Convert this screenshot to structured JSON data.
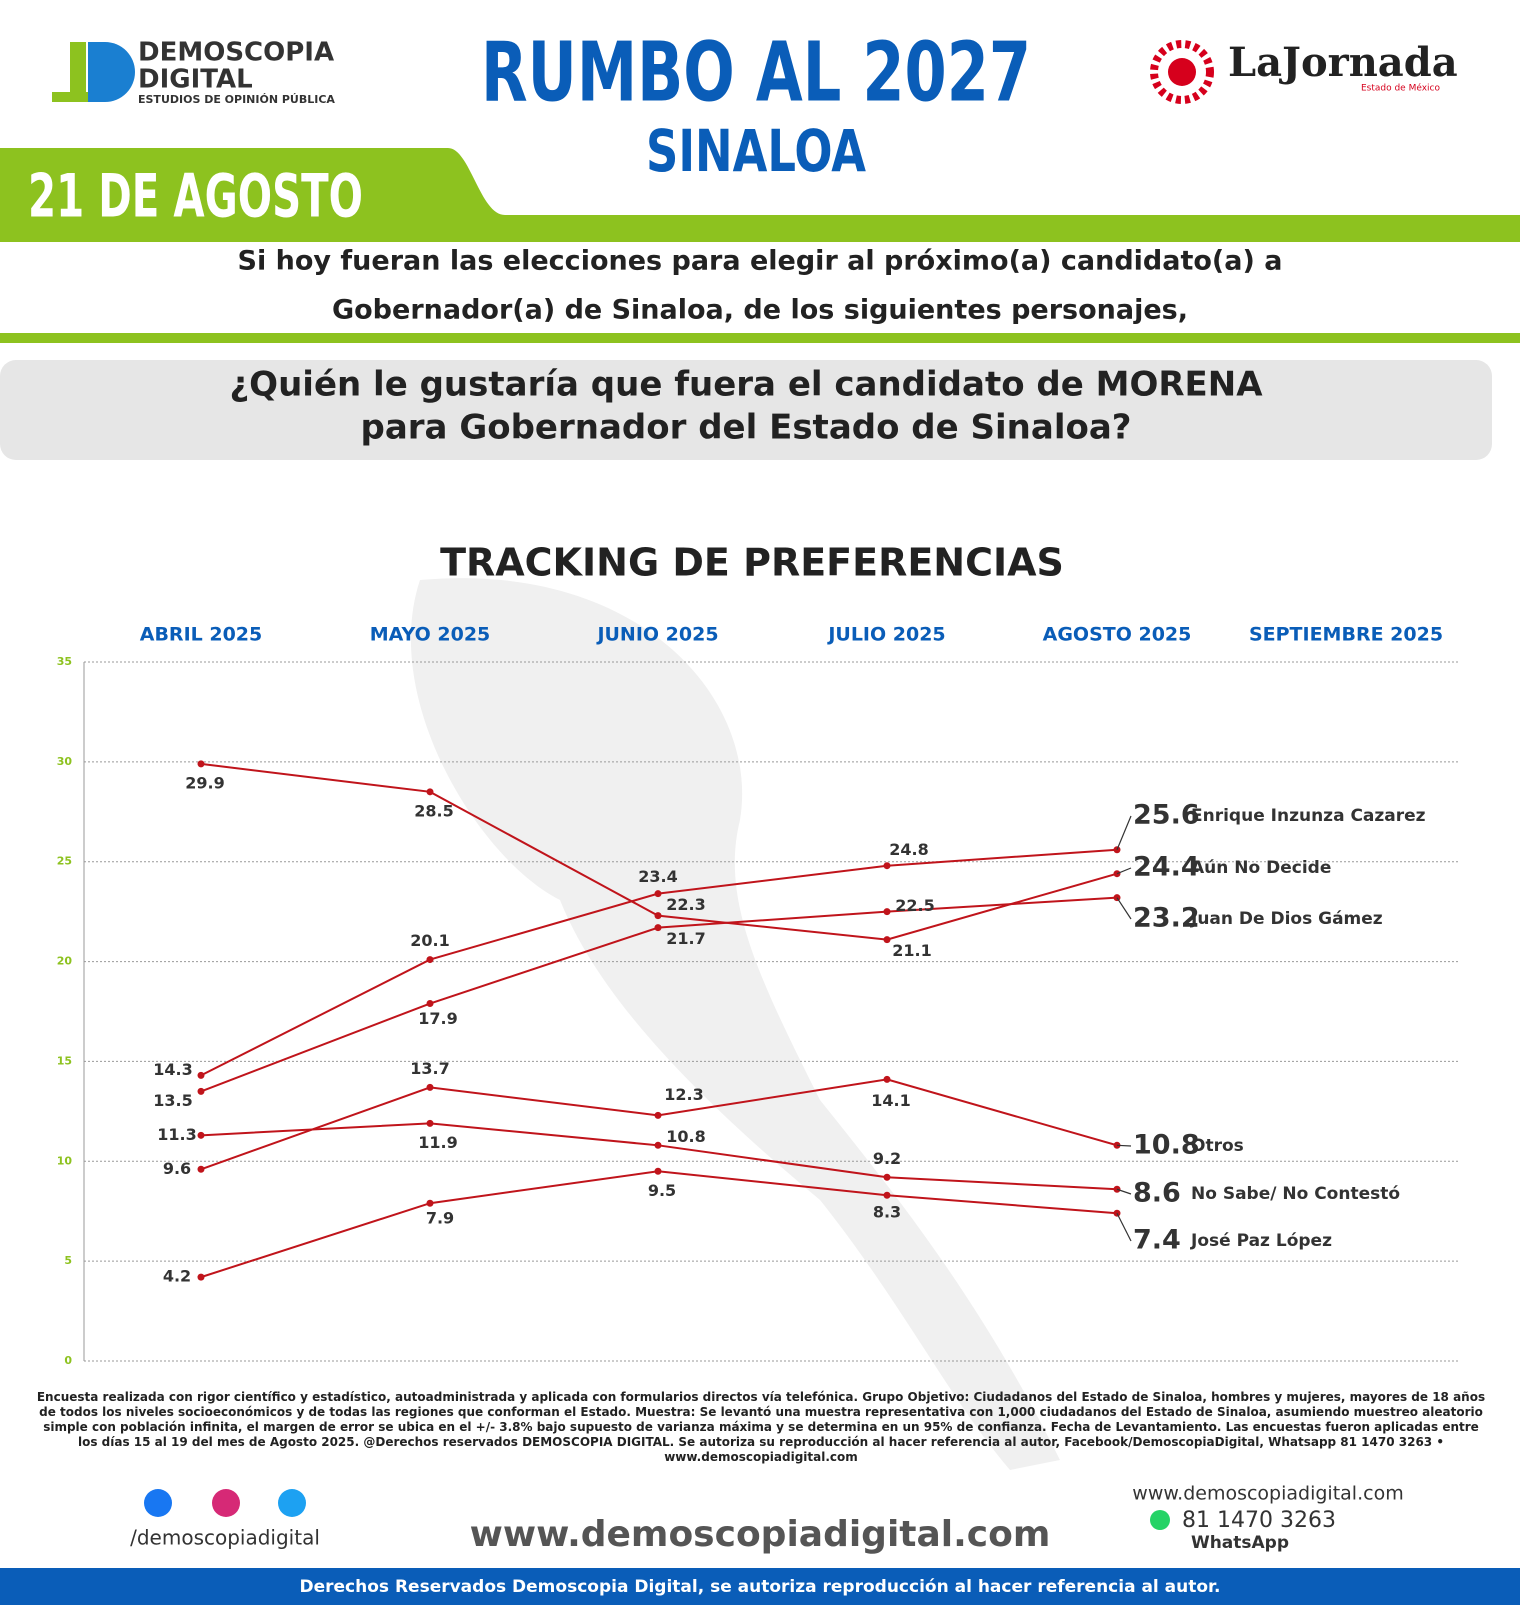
{
  "header": {
    "brand": "DEMOSCOPIA",
    "brand2": "DIGITAL",
    "brand_sub": "ESTUDIOS DE OPINIÓN PÚBLICA",
    "title": "RUMBO AL 2027",
    "subtitle": "SINALOA",
    "date": "21 DE AGOSTO",
    "partner": "LaJornada",
    "partner_sub": "Estado de México"
  },
  "intro": [
    "Si hoy fueran las elecciones para elegir al próximo(a) candidato(a) a",
    "Gobernador(a) de Sinaloa, de los siguientes personajes,"
  ],
  "question": [
    "¿Quién le gustaría que fuera el candidato de MORENA",
    "para Gobernador del Estado de Sinaloa?"
  ],
  "chart_data": {
    "type": "line",
    "title": "TRACKING DE PREFERENCIAS",
    "categories": [
      "ABRIL 2025",
      "MAYO 2025",
      "JUNIO 2025",
      "JULIO 2025",
      "AGOSTO 2025",
      "SEPTIEMBRE 2025"
    ],
    "ylim": [
      0,
      35
    ],
    "yticks": [
      0,
      5,
      10,
      15,
      20,
      25,
      30,
      35
    ],
    "grid": true,
    "series": [
      {
        "name": "Enrique Inzunza Cazarez",
        "color": "#c0141b",
        "values": [
          14.3,
          20.1,
          23.4,
          24.8,
          25.6,
          null
        ]
      },
      {
        "name": "Aún No Decide",
        "color": "#c0141b",
        "values": [
          29.9,
          28.5,
          22.3,
          21.1,
          24.4,
          null
        ]
      },
      {
        "name": "Juan De Dios Gámez",
        "color": "#c0141b",
        "values": [
          13.5,
          17.9,
          21.7,
          22.5,
          23.2,
          null
        ]
      },
      {
        "name": "Otros",
        "color": "#c0141b",
        "values": [
          9.6,
          13.7,
          12.3,
          14.1,
          10.8,
          null
        ]
      },
      {
        "name": "No Sabe/ No Contestó",
        "color": "#c0141b",
        "values": [
          11.3,
          11.9,
          10.8,
          9.2,
          8.6,
          null
        ]
      },
      {
        "name": "José Paz López",
        "color": "#c0141b",
        "values": [
          4.2,
          7.9,
          9.5,
          8.3,
          7.4,
          null
        ]
      }
    ]
  },
  "footer": {
    "note": "Encuesta realizada con rigor científico y estadístico, autoadministrada y aplicada con formularios directos vía telefónica. Grupo Objetivo: Ciudadanos del Estado de Sinaloa, hombres y mujeres, mayores de 18 años de todos los niveles socioeconómicos y de todas las regiones que conforman el Estado. Muestra: Se levantó una muestra representativa con 1,000 ciudadanos del Estado de Sinaloa, asumiendo muestreo aleatorio simple con población infinita, el margen de error se ubica en el +/- 3.8% bajo supuesto de varianza máxima y se determina en un 95% de confianza. Fecha de Levantamiento. Las encuestas fueron aplicadas entre los días 15 al 19 del mes de Agosto 2025. @Derechos reservados DEMOSCOPIA DIGITAL. Se autoriza su reproducción al hacer referencia al autor, Facebook/DemoscopiaDigital, Whatsapp 81 1470 3263 • www.demoscopiadigital.com",
    "social": "/demoscopiadigital",
    "website": "www.demoscopiadigital.com",
    "website_small": "www.demoscopiadigital.com",
    "phone": "81 1470 3263",
    "whatsapp": "WhatsApp",
    "rights": "Derechos Reservados Demoscopia Digital, se autoriza reproducción al hacer referencia al autor."
  }
}
